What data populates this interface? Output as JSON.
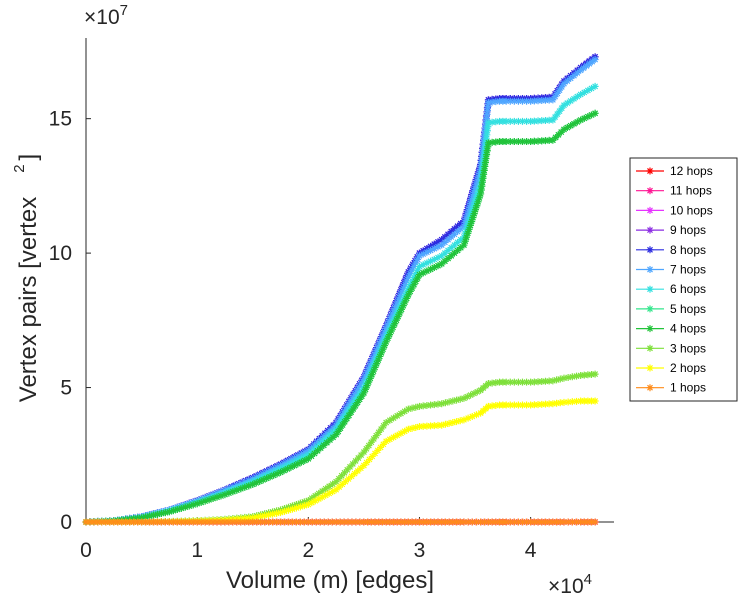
{
  "chart_data": {
    "type": "line",
    "title": "",
    "xlabel": "Volume (m) [edges]",
    "ylabel_main": "Vertex pairs [vertex",
    "ylabel_sup": "2",
    "ylabel_close": "]",
    "x_multiplier": {
      "base": "×10",
      "exp": "4"
    },
    "y_multiplier": {
      "base": "×10",
      "exp": "7"
    },
    "xlim": [
      0,
      4.75
    ],
    "ylim": [
      0,
      18
    ],
    "x_ticks": [
      0,
      1,
      2,
      3,
      4
    ],
    "x_tick_labels": [
      "0",
      "1",
      "2",
      "3",
      "4"
    ],
    "y_ticks": [
      0,
      5,
      10,
      15
    ],
    "y_tick_labels": [
      "0",
      "5",
      "10",
      "15"
    ],
    "grid": false,
    "legend_position": "right",
    "x": [
      0,
      0.25,
      0.5,
      0.75,
      1.0,
      1.25,
      1.5,
      1.75,
      2.0,
      2.25,
      2.5,
      2.7,
      2.9,
      3.0,
      3.2,
      3.4,
      3.55,
      3.62,
      3.72,
      3.78,
      4.0,
      4.2,
      4.3,
      4.45,
      4.58
    ],
    "series": [
      {
        "name": "12 hops",
        "color": "#ff0000",
        "values": [
          0,
          0,
          0,
          0,
          0,
          0,
          0,
          0,
          0,
          0,
          0,
          0,
          0,
          0,
          0,
          0,
          0,
          0,
          0,
          0,
          0,
          0,
          0,
          0,
          0
        ]
      },
      {
        "name": "11 hops",
        "color": "#ff1493",
        "values": [
          0,
          0,
          0,
          0,
          0,
          0,
          0,
          0,
          0,
          0,
          0,
          0,
          0,
          0,
          0,
          0,
          0,
          0,
          0,
          0,
          0,
          0,
          0,
          0,
          0
        ]
      },
      {
        "name": "10 hops",
        "color": "#e633ff",
        "values": [
          0,
          0,
          0,
          0,
          0,
          0,
          0,
          0,
          0,
          0,
          0,
          0,
          0,
          0,
          0,
          0,
          0,
          0,
          0,
          0,
          0,
          0,
          0,
          0,
          0
        ]
      },
      {
        "name": "9 hops",
        "color": "#8a2be2",
        "values": [
          0,
          0.05,
          0.2,
          0.45,
          0.8,
          1.2,
          1.65,
          2.15,
          2.7,
          3.7,
          5.4,
          7.3,
          9.3,
          10.0,
          10.5,
          11.2,
          13.3,
          15.7,
          15.75,
          15.75,
          15.75,
          15.8,
          16.4,
          16.9,
          17.3
        ]
      },
      {
        "name": "8 hops",
        "color": "#2c2ce0",
        "values": [
          0,
          0.05,
          0.2,
          0.45,
          0.8,
          1.2,
          1.65,
          2.15,
          2.7,
          3.7,
          5.4,
          7.3,
          9.3,
          10.0,
          10.5,
          11.2,
          13.3,
          15.7,
          15.75,
          15.75,
          15.75,
          15.8,
          16.4,
          16.9,
          17.3
        ]
      },
      {
        "name": "7 hops",
        "color": "#4fa6ff",
        "values": [
          0,
          0.05,
          0.2,
          0.45,
          0.78,
          1.18,
          1.6,
          2.1,
          2.65,
          3.6,
          5.3,
          7.2,
          9.1,
          9.9,
          10.3,
          11.0,
          13.1,
          15.6,
          15.65,
          15.65,
          15.65,
          15.7,
          16.3,
          16.8,
          17.2
        ]
      },
      {
        "name": "6 hops",
        "color": "#33e0e0",
        "values": [
          0,
          0.05,
          0.18,
          0.42,
          0.74,
          1.1,
          1.5,
          1.98,
          2.5,
          3.45,
          5.0,
          6.9,
          8.7,
          9.5,
          9.9,
          10.6,
          12.6,
          14.85,
          14.9,
          14.9,
          14.9,
          14.95,
          15.5,
          15.9,
          16.2
        ]
      },
      {
        "name": "5 hops",
        "color": "#33e68c",
        "values": [
          0,
          0.04,
          0.16,
          0.38,
          0.68,
          1.02,
          1.4,
          1.85,
          2.35,
          3.25,
          4.8,
          6.7,
          8.45,
          9.2,
          9.6,
          10.3,
          12.2,
          14.1,
          14.15,
          14.15,
          14.15,
          14.2,
          14.6,
          14.95,
          15.2
        ]
      },
      {
        "name": "4 hops",
        "color": "#22c33a",
        "values": [
          0,
          0.04,
          0.16,
          0.38,
          0.68,
          1.02,
          1.4,
          1.85,
          2.35,
          3.25,
          4.8,
          6.7,
          8.45,
          9.2,
          9.6,
          10.3,
          12.2,
          14.1,
          14.15,
          14.15,
          14.15,
          14.2,
          14.6,
          14.95,
          15.2
        ]
      },
      {
        "name": "3 hops",
        "color": "#7ee03a",
        "values": [
          0,
          0,
          0,
          0.02,
          0.05,
          0.1,
          0.2,
          0.45,
          0.8,
          1.5,
          2.6,
          3.7,
          4.2,
          4.3,
          4.4,
          4.6,
          4.9,
          5.15,
          5.2,
          5.2,
          5.2,
          5.25,
          5.35,
          5.45,
          5.5
        ]
      },
      {
        "name": "2 hops",
        "color": "#ffff00",
        "values": [
          0,
          0,
          0,
          0.01,
          0.03,
          0.07,
          0.15,
          0.35,
          0.65,
          1.2,
          2.1,
          3.0,
          3.45,
          3.55,
          3.6,
          3.8,
          4.05,
          4.3,
          4.35,
          4.35,
          4.35,
          4.4,
          4.45,
          4.5,
          4.5
        ]
      },
      {
        "name": "1 hops",
        "color": "#ff8c1a",
        "values": [
          0,
          0,
          0,
          0,
          0,
          0,
          0,
          0,
          0,
          0,
          0,
          0,
          0,
          0,
          0,
          0,
          0,
          0,
          0,
          0,
          0,
          0,
          0,
          0,
          0
        ]
      }
    ]
  }
}
